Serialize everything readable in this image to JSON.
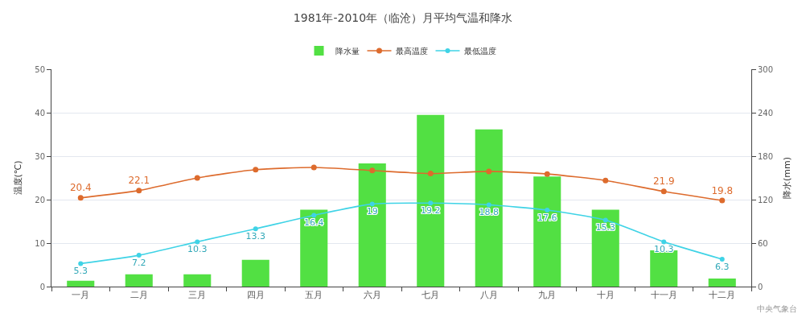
{
  "chart_data": {
    "type": "bar",
    "title": "1981年-2010年（临沧）月平均气温和降水",
    "ylabel": "温度(℃)",
    "y2label": "降水(mm)",
    "categories": [
      "一月",
      "二月",
      "三月",
      "四月",
      "五月",
      "六月",
      "七月",
      "八月",
      "九月",
      "十月",
      "十一月",
      "十二月"
    ],
    "series": [
      {
        "name": "降水量",
        "axis": "y2",
        "color": "#52e043",
        "values": [
          8,
          17,
          17,
          37,
          106,
          170,
          237,
          217,
          152,
          106,
          50,
          11
        ]
      },
      {
        "name": "最高温度",
        "type": "line",
        "color": "#dd6b2d",
        "values": [
          20.4,
          22.1,
          25.0,
          26.9,
          27.4,
          26.7,
          26.0,
          26.5,
          25.9,
          24.4,
          21.9,
          19.8
        ],
        "value_labels": [
          "20.4",
          "22.1",
          null,
          null,
          null,
          null,
          null,
          null,
          null,
          null,
          "21.9",
          "19.8"
        ]
      },
      {
        "name": "最低温度",
        "type": "line",
        "color": "#3fd3e6",
        "values": [
          5.3,
          7.2,
          10.3,
          13.3,
          16.4,
          19,
          19.2,
          18.8,
          17.6,
          15.3,
          10.3,
          6.3
        ],
        "value_labels": [
          "5.3",
          "7.2",
          "10.3",
          "13.3",
          "16.4",
          "19",
          "19.2",
          "18.8",
          "17.6",
          "15.3",
          "10.3",
          "6.3"
        ]
      }
    ],
    "ylim": [
      0,
      50
    ],
    "yticks": [
      0,
      10,
      20,
      30,
      40,
      50
    ],
    "y2lim": [
      0,
      300
    ],
    "y2ticks": [
      0,
      60,
      120,
      180,
      240,
      300
    ],
    "grid": "y",
    "legend": "top",
    "marker": "circle",
    "line_style": "solid",
    "annotations": [
      "中央气象台"
    ]
  }
}
